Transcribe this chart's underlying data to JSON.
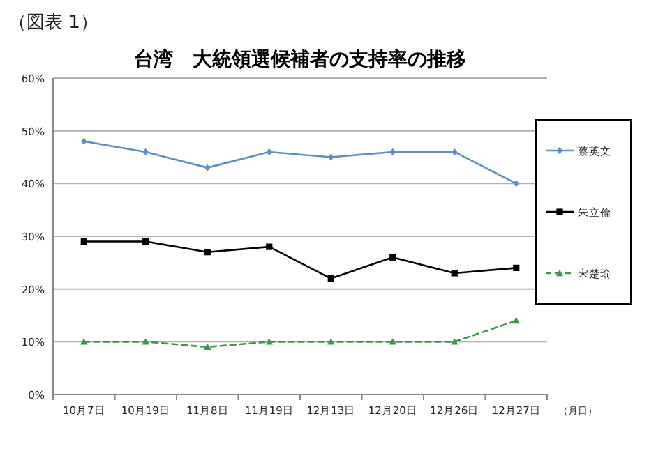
{
  "chart_data": {
    "type": "line",
    "title": "台湾　大統領選候補者の支持率の推移",
    "annotations": [
      "（図表 1）"
    ],
    "xlabel": "（月日）",
    "categories": [
      "10月7日",
      "10月19日",
      "11月8日",
      "11月19日",
      "12月13日",
      "12月20日",
      "12月26日",
      "12月27日"
    ],
    "series": [
      {
        "name": "蔡英文",
        "color": "#5b8fc7",
        "values": [
          48,
          46,
          43,
          46,
          45,
          46,
          46,
          40
        ],
        "marker": "diamond",
        "line_style": "solid"
      },
      {
        "name": "朱立倫",
        "color": "#000000",
        "values": [
          29,
          29,
          27,
          28,
          22,
          26,
          23,
          24
        ],
        "marker": "square",
        "line_style": "solid"
      },
      {
        "name": "宋楚瑜",
        "color": "#3a9a4a",
        "values": [
          10,
          10,
          9,
          10,
          10,
          10,
          10,
          14
        ],
        "marker": "triangle",
        "line_style": "dashed"
      }
    ],
    "ylim": [
      0,
      60
    ],
    "yticks": [
      {
        "value": 0,
        "label": "0%"
      },
      {
        "value": 10,
        "label": "10%"
      },
      {
        "value": 20,
        "label": "20%"
      },
      {
        "value": 30,
        "label": "30%"
      },
      {
        "value": 40,
        "label": "40%"
      },
      {
        "value": 50,
        "label": "50%"
      },
      {
        "value": 60,
        "label": "60%"
      }
    ],
    "grid": "y",
    "legend": "right"
  }
}
